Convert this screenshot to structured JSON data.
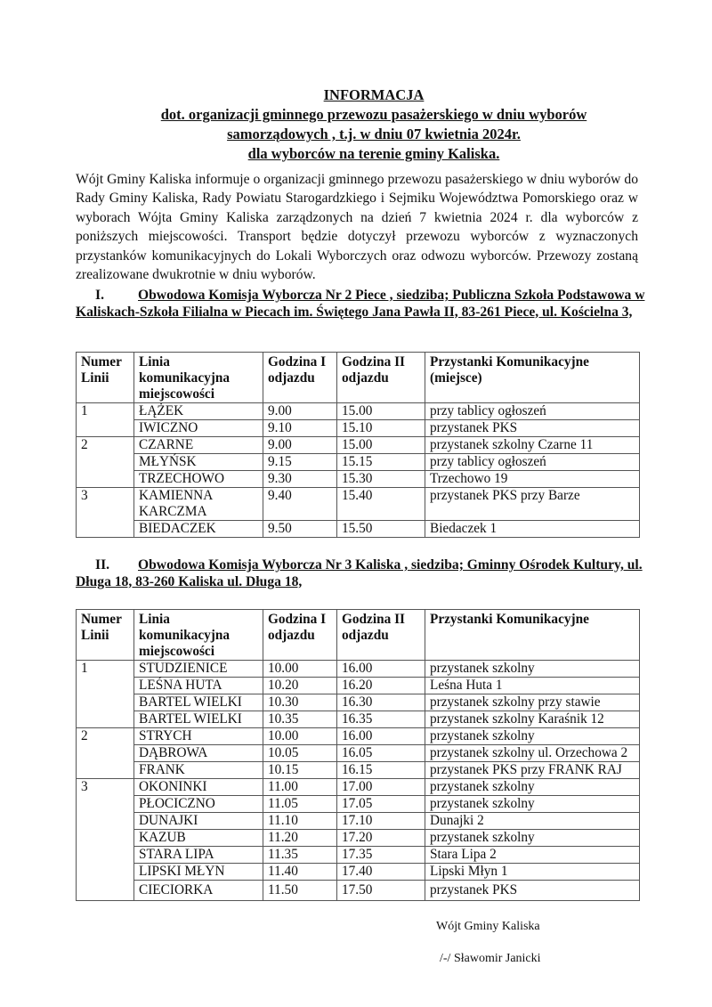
{
  "title": {
    "heading": "INFORMACJA",
    "line1": "dot. organizacji gminnego  przewozu pasażerskiego w dniu wyborów",
    "line2": "samorządowych , t.j. w dniu 07 kwietnia 2024r.",
    "line3": "dla wyborców na terenie gminy Kaliska."
  },
  "intro": "Wójt Gminy Kaliska informuje o organizacji gminnego  przewozu pasażerskiego w dniu wyborów do Rady Gminy Kaliska, Rady Powiatu Starogardzkiego i Sejmiku Województwa Pomorskiego oraz w wyborach Wójta Gminy Kaliska zarządzonych na dzień 7 kwietnia 2024 r. dla wyborców z poniższych miejscowości. Transport będzie dotyczył przewozu wyborców z wyznaczonych przystanków komunikacyjnych do Lokali Wyborczych oraz odwozu wyborców. Przewozy zostaną zrealizowane dwukrotnie w dniu wyborów.",
  "sections": [
    {
      "numeral": "I.",
      "heading": "Obwodowa Komisja Wyborcza Nr 2 Piece , siedziba; Publiczna Szkoła Podstawowa w Kaliskach-Szkoła Filialna w Piecach im. Świętego Jana Pawła II,  83-261 Piece, ul. Kościelna 3,",
      "headers": [
        "Numer Linii",
        "Linia komunikacyjna miejscowości",
        "Godzina I odjazdu",
        "Godzina II odjazdu",
        "Przystanki Komunikacyjne (miejsce)"
      ],
      "groups": [
        {
          "line": "1",
          "rows": [
            [
              "ŁĄŻEK",
              "9.00",
              "15.00",
              "przy tablicy ogłoszeń"
            ],
            [
              "IWICZNO",
              "9.10",
              "15.10",
              "przystanek PKS"
            ]
          ]
        },
        {
          "line": "2",
          "rows": [
            [
              "CZARNE",
              "9.00",
              "15.00",
              "przystanek szkolny Czarne 11"
            ],
            [
              "MŁYŃSK",
              "9.15",
              "15.15",
              "przy tablicy ogłoszeń"
            ],
            [
              "TRZECHOWO",
              "9.30",
              "15.30",
              "Trzechowo 19"
            ]
          ]
        },
        {
          "line": "3",
          "rows": [
            [
              "KAMIENNA KARCZMA",
              "9.40",
              "15.40",
              "przystanek PKS przy Barze"
            ],
            [
              "BIEDACZEK",
              "9.50",
              "15.50",
              "Biedaczek 1"
            ]
          ]
        }
      ]
    },
    {
      "numeral": "II.",
      "heading": "Obwodowa Komisja Wyborcza Nr 3 Kaliska , siedziba; Gminny Ośrodek Kultury, ul. Długa 18,  83-260 Kaliska ul. Długa 18,",
      "headers": [
        "Numer Linii",
        "Linia komunikacyjna miejscowości",
        "Godzina I odjazdu",
        "Godzina II odjazdu",
        "Przystanki Komunikacyjne"
      ],
      "groups": [
        {
          "line": "1",
          "rows": [
            [
              "STUDZIENICE",
              "10.00",
              "16.00",
              "przystanek szkolny"
            ],
            [
              "LEŚNA HUTA",
              "10.20",
              "16.20",
              "Leśna Huta 1"
            ],
            [
              "BARTEL WIELKI",
              "10.30",
              "16.30",
              "przystanek szkolny przy stawie"
            ],
            [
              "BARTEL WIELKI",
              "10.35",
              "16.35",
              "przystanek szkolny Karaśnik 12"
            ]
          ]
        },
        {
          "line": "2",
          "rows": [
            [
              "STRYCH",
              "10.00",
              "16.00",
              "przystanek szkolny"
            ],
            [
              "DĄBROWA",
              "10.05",
              "16.05",
              "przystanek szkolny ul. Orzechowa 2"
            ],
            [
              "FRANK",
              "10.15",
              "16.15",
              "przystanek PKS przy FRANK RAJ"
            ]
          ]
        },
        {
          "line": "3",
          "rows": [
            [
              "OKONINKI",
              "11.00",
              "17.00",
              "przystanek szkolny"
            ],
            [
              "PŁOCICZNO",
              "11.05",
              "17.05",
              "przystanek szkolny"
            ],
            [
              "DUNAJKI",
              "11.10",
              "17.10",
              "Dunajki 2"
            ],
            [
              "KAZUB",
              "11.20",
              "17.20",
              "przystanek szkolny"
            ],
            [
              "STARA LIPA",
              "11.35",
              "17.35",
              "Stara Lipa 2"
            ],
            [
              "LIPSKI MŁYN",
              "11.40",
              "17.40",
              "Lipski Młyn 1"
            ],
            [
              "CIECIORKA",
              "11.50",
              "17.50",
              "przystanek PKS"
            ]
          ]
        }
      ]
    }
  ],
  "signature": {
    "role": "Wójt Gminy Kaliska",
    "name": "/-/ Sławomir Janicki"
  }
}
